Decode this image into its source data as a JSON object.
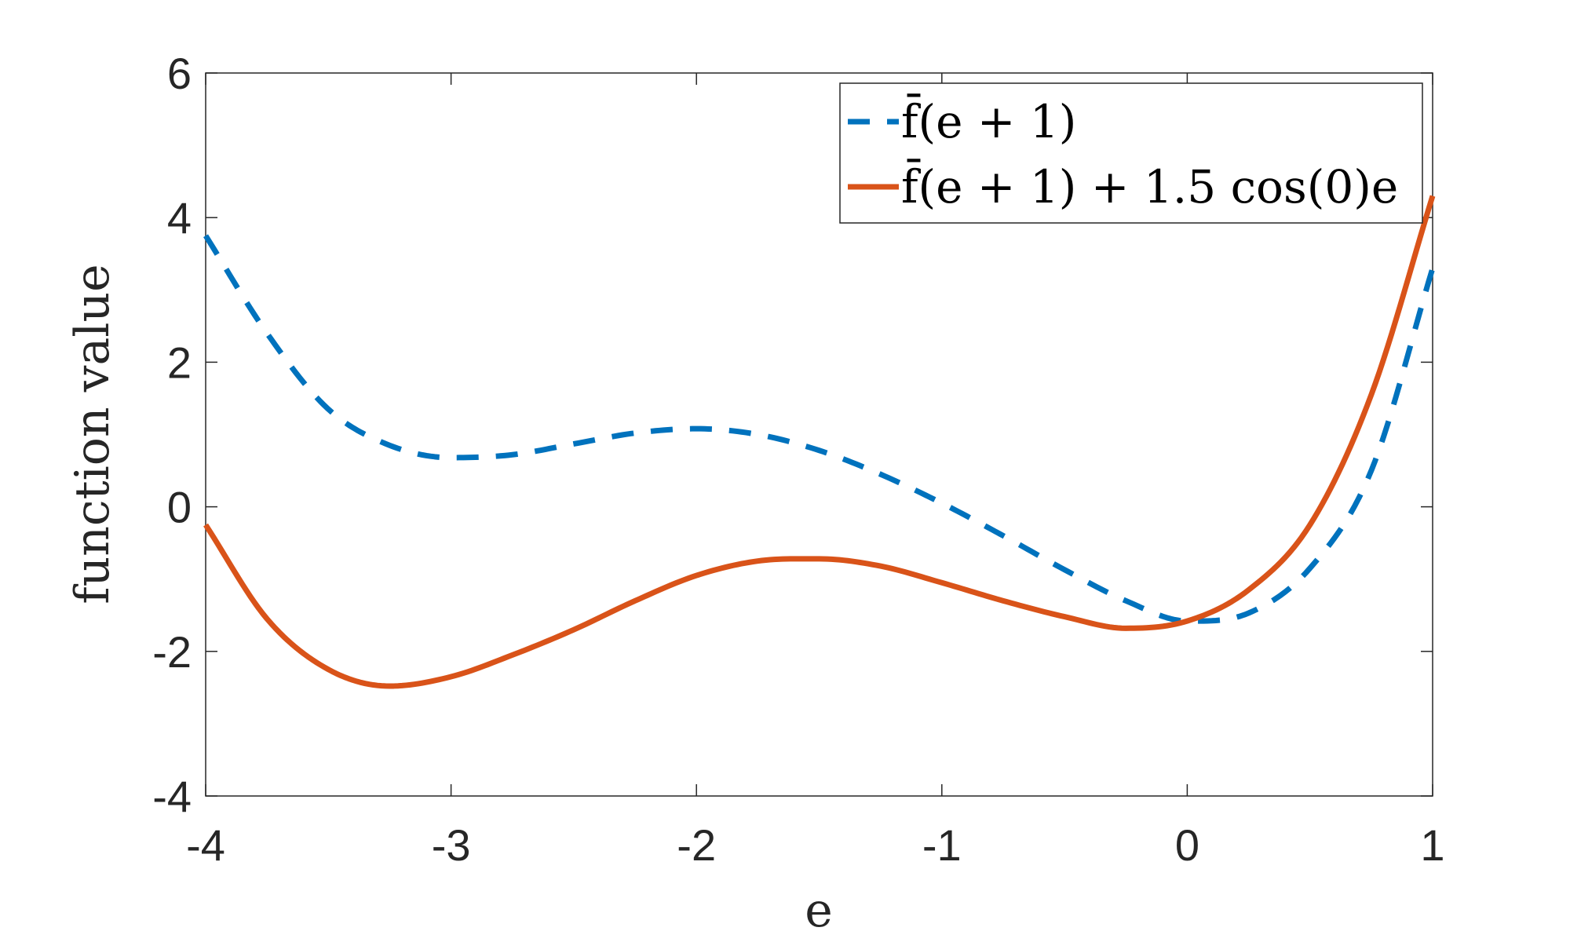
{
  "chart_data": {
    "type": "line",
    "title": "",
    "xlabel": "e",
    "ylabel": "function value",
    "xlim": [
      -4,
      1
    ],
    "ylim": [
      -4,
      6
    ],
    "xticks": [
      -4,
      -3,
      -2,
      -1,
      0,
      1
    ],
    "xtick_labels": [
      "-4",
      "-3",
      "-2",
      "-1",
      "0",
      "1"
    ],
    "yticks": [
      -4,
      -2,
      0,
      2,
      4,
      6
    ],
    "ytick_labels": [
      "-4",
      "-2",
      "0",
      "2",
      "4",
      "6"
    ],
    "grid": false,
    "legend_position": "top-right",
    "series": [
      {
        "name": "f̄(e + 1)",
        "style": "dashed",
        "color": "#0072BD",
        "x": [
          -4,
          -3.75,
          -3.5,
          -3.25,
          -3,
          -2.75,
          -2.5,
          -2.25,
          -2,
          -1.75,
          -1.5,
          -1.25,
          -1,
          -0.75,
          -0.5,
          -0.25,
          0,
          0.25,
          0.5,
          0.75,
          1
        ],
        "y": [
          3.75,
          2.4,
          1.35,
          0.85,
          0.68,
          0.72,
          0.87,
          1.02,
          1.08,
          1.0,
          0.78,
          0.45,
          0.05,
          -0.4,
          -0.87,
          -1.3,
          -1.58,
          -1.47,
          -0.85,
          0.5,
          3.3
        ]
      },
      {
        "name": "f̄(e + 1) + 1.5 cos(0)e",
        "style": "solid",
        "color": "#D95319",
        "x": [
          -4,
          -3.75,
          -3.5,
          -3.25,
          -3,
          -2.75,
          -2.5,
          -2.25,
          -2,
          -1.75,
          -1.5,
          -1.25,
          -1,
          -0.75,
          -0.5,
          -0.25,
          0,
          0.25,
          0.5,
          0.75,
          1
        ],
        "y": [
          -0.25,
          -1.55,
          -2.25,
          -2.48,
          -2.35,
          -2.05,
          -1.7,
          -1.3,
          -0.95,
          -0.75,
          -0.72,
          -0.82,
          -1.05,
          -1.3,
          -1.52,
          -1.68,
          -1.58,
          -1.15,
          -0.25,
          1.55,
          4.3
        ]
      }
    ]
  }
}
